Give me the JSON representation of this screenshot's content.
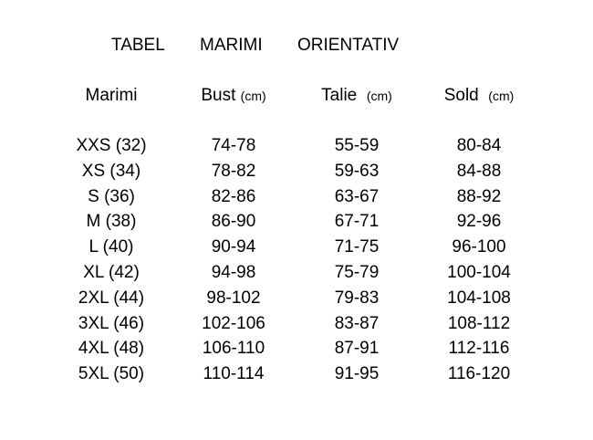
{
  "title": {
    "word1": "TABEL",
    "word2": "MARIMI",
    "word3": "ORIENTATIV"
  },
  "headers": [
    {
      "label": "Marimi",
      "unit": ""
    },
    {
      "label": "Bust",
      "unit": "(cm)"
    },
    {
      "label": "Talie",
      "unit": "(cm)"
    },
    {
      "label": "Sold",
      "unit": "(cm)"
    }
  ],
  "rows": [
    [
      "XXS (32)",
      "74-78",
      "55-59",
      "80-84"
    ],
    [
      "XS (34)",
      "78-82",
      "59-63",
      "84-88"
    ],
    [
      "S (36)",
      "82-86",
      "63-67",
      "88-92"
    ],
    [
      "M (38)",
      "86-90",
      "67-71",
      "92-96"
    ],
    [
      "L (40)",
      "90-94",
      "71-75",
      "96-100"
    ],
    [
      "XL (42)",
      "94-98",
      "75-79",
      "100-104"
    ],
    [
      "2XL (44)",
      "98-102",
      "79-83",
      "104-108"
    ],
    [
      "3XL (46)",
      "102-106",
      "83-87",
      "108-112"
    ],
    [
      "4XL (48)",
      "106-110",
      "87-91",
      "112-116"
    ],
    [
      "5XL (50)",
      "110-114",
      "91-95",
      "116-120"
    ]
  ]
}
